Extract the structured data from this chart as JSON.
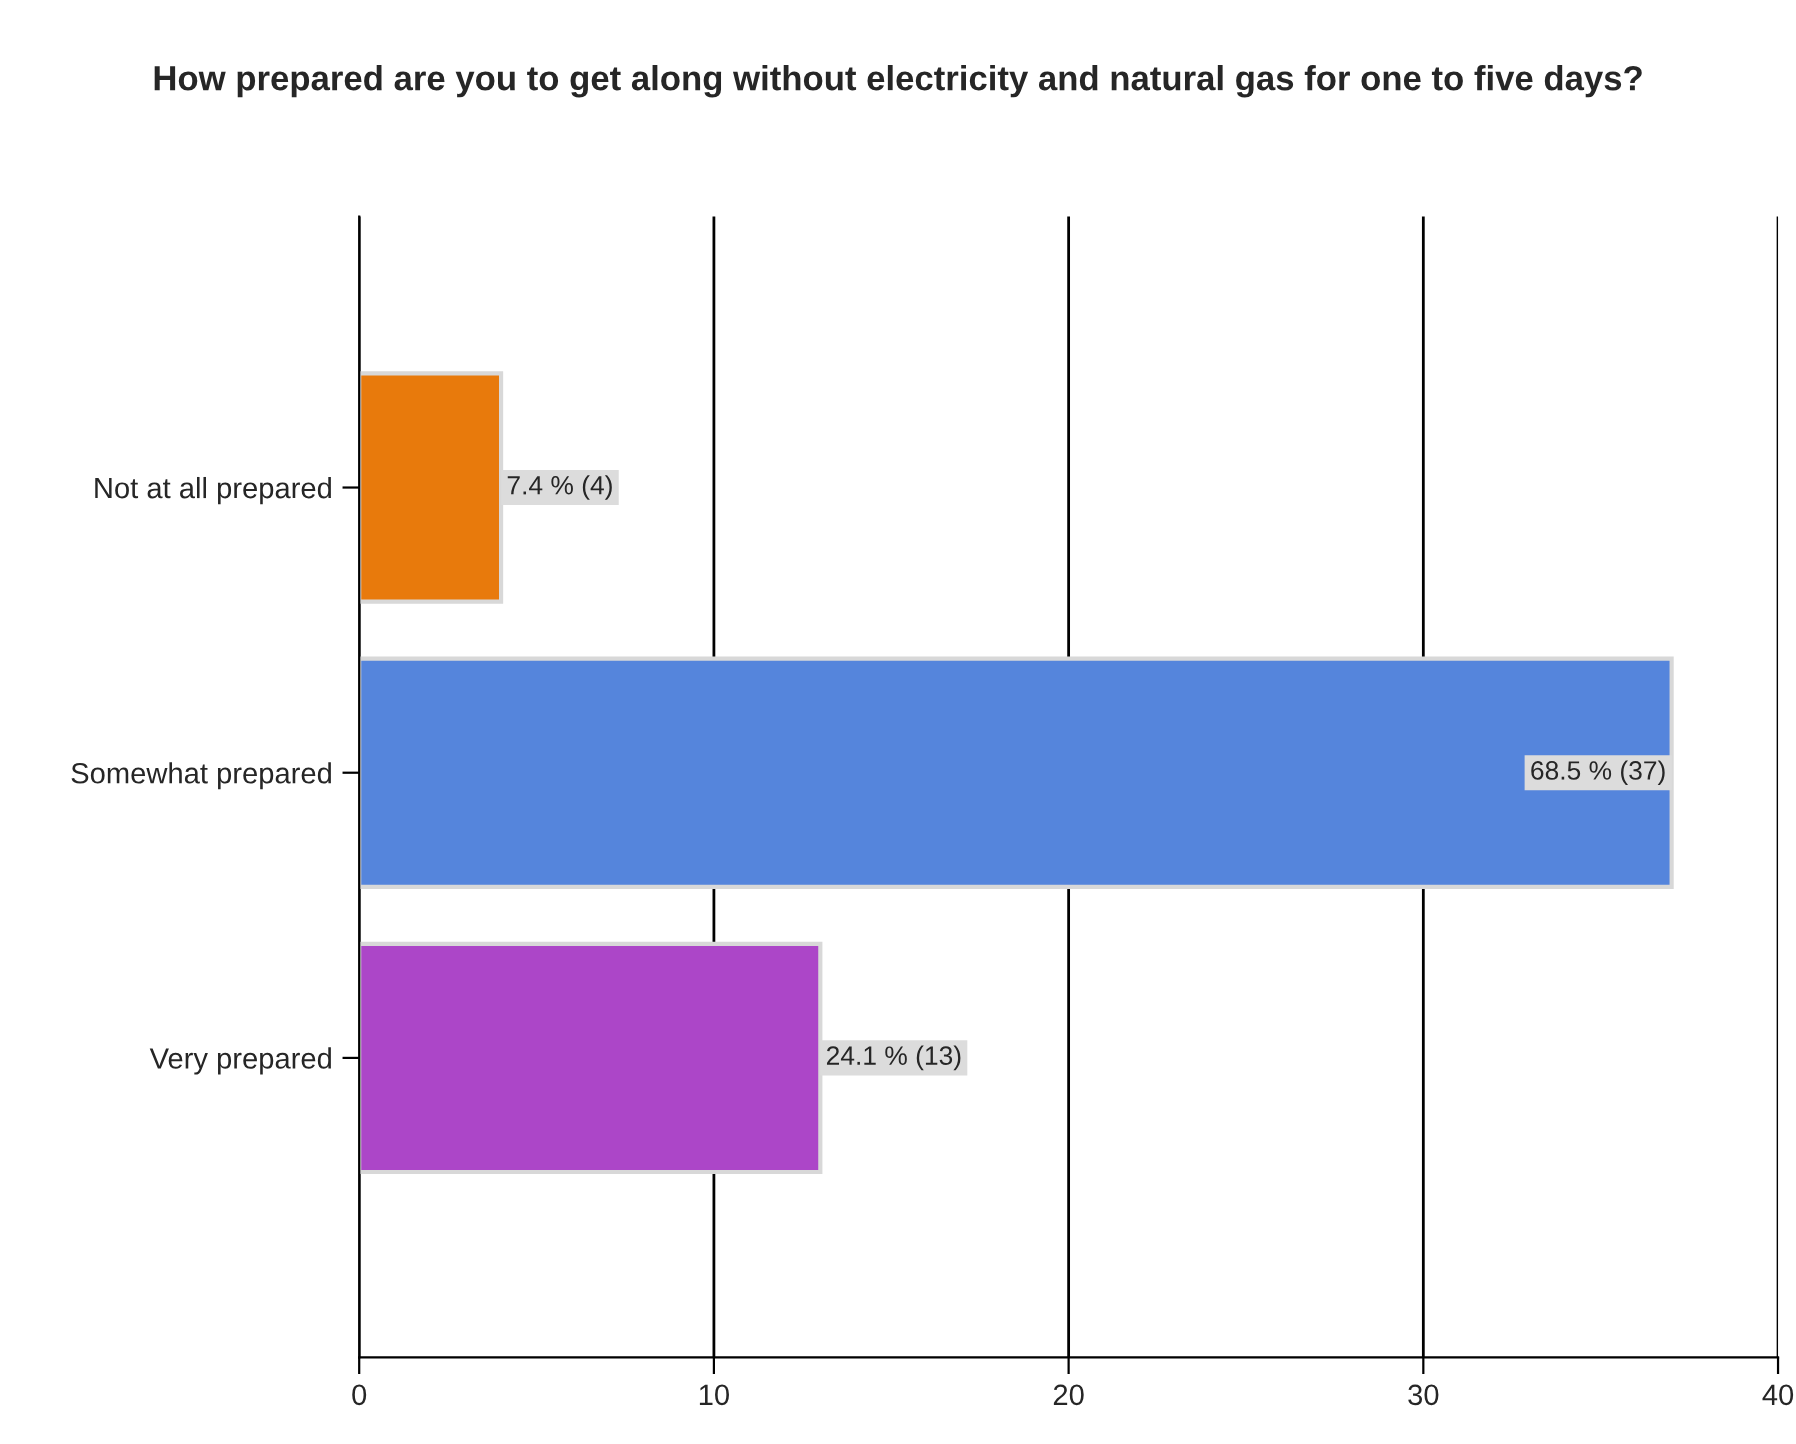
{
  "chart_data": {
    "type": "bar",
    "orientation": "horizontal",
    "title": "How prepared are you to get along without electricity and natural gas for one to five days?",
    "categories": [
      "Not at all prepared",
      "Somewhat prepared",
      "Very prepared"
    ],
    "values": [
      4,
      37,
      13
    ],
    "colors": [
      "#e87a0c",
      "#5585dc",
      "#ac46c8"
    ],
    "value_labels": [
      "7.4 % (4)",
      "68.5 % (37)",
      "24.1 % (13)"
    ],
    "xlim": [
      0,
      40
    ],
    "xticks": [
      0,
      10,
      20,
      30,
      40
    ],
    "grid": "x",
    "legend": false
  }
}
